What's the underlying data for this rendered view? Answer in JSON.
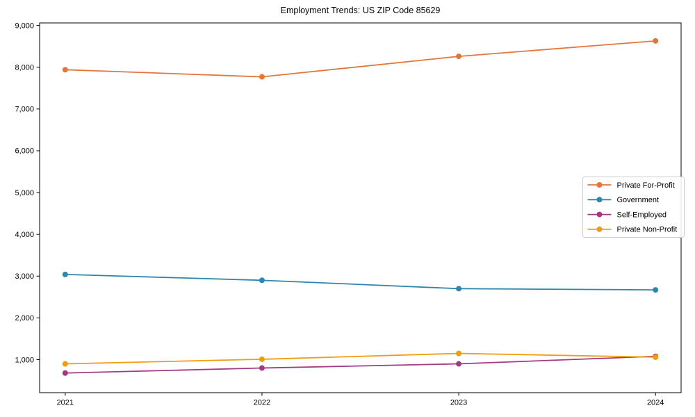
{
  "chart_data": {
    "type": "line",
    "title": "Employment Trends: US ZIP Code 85629",
    "xlabel": "",
    "ylabel": "",
    "categories": [
      "2021",
      "2022",
      "2023",
      "2024"
    ],
    "x": [
      2021,
      2022,
      2023,
      2024
    ],
    "series": [
      {
        "name": "Private For-Profit",
        "color": "#E2773B",
        "values": [
          7940,
          7770,
          8260,
          8630
        ]
      },
      {
        "name": "Government",
        "color": "#2E87AB",
        "values": [
          3040,
          2900,
          2700,
          2670
        ]
      },
      {
        "name": "Self-Employed",
        "color": "#A23A83",
        "values": [
          680,
          800,
          900,
          1080
        ]
      },
      {
        "name": "Private Non-Profit",
        "color": "#F09C0E",
        "values": [
          900,
          1010,
          1150,
          1060
        ]
      }
    ],
    "xlim": [
      2020.87,
      2024.13
    ],
    "ylim": [
      210,
      9060
    ],
    "yticks": [
      1000,
      2000,
      3000,
      4000,
      5000,
      6000,
      7000,
      8000,
      9000
    ],
    "ytick_labels": [
      "1,000",
      "2,000",
      "3,000",
      "4,000",
      "5,000",
      "6,000",
      "7,000",
      "8,000",
      "9,000"
    ],
    "grid": false,
    "legend_position": "center-right",
    "marker": "circle",
    "colors": {
      "axis": "#000000",
      "tick_text": "#000000",
      "legend_border": "#cccccc",
      "legend_bg": "#ffffff",
      "background": "#ffffff"
    }
  }
}
